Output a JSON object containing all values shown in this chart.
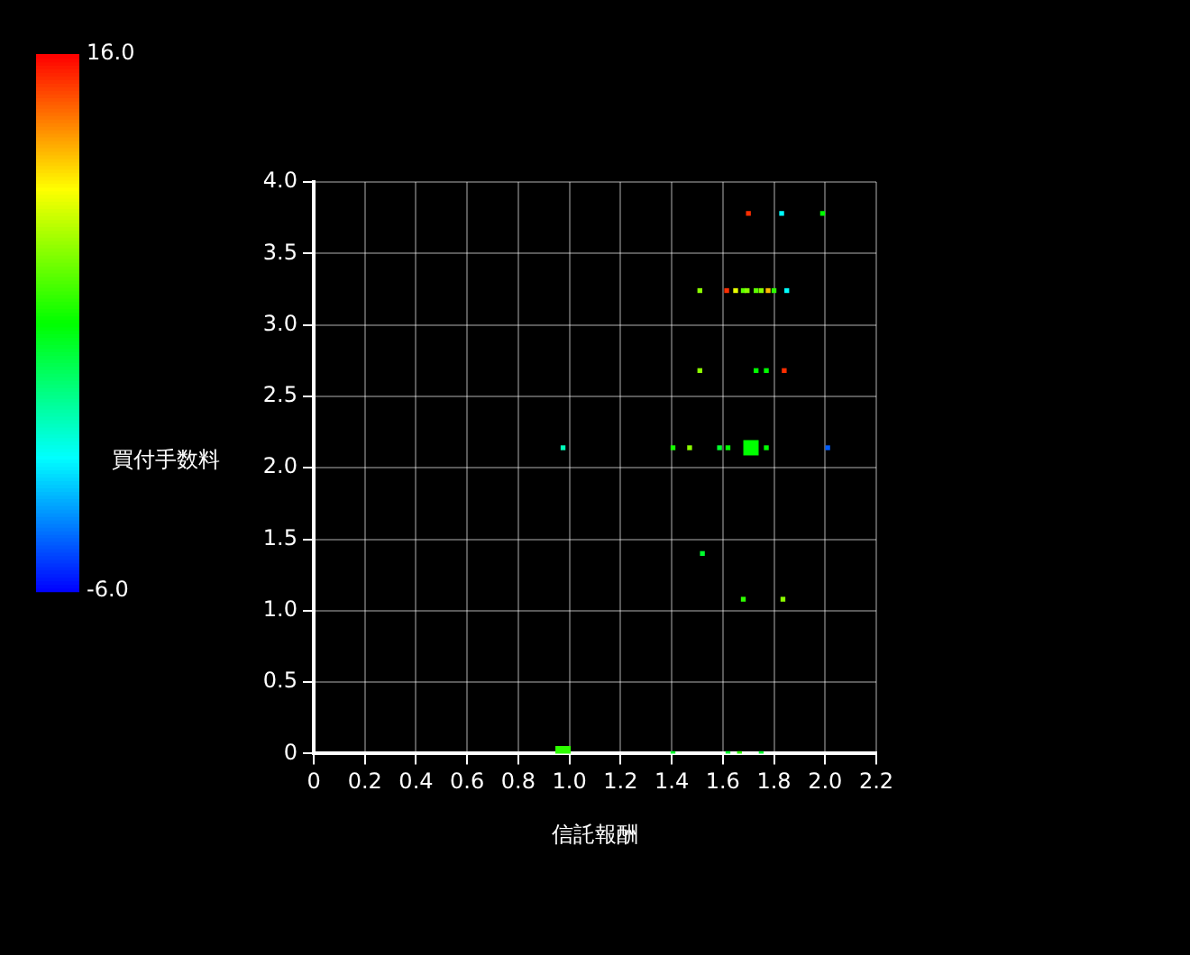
{
  "chart_data": {
    "type": "bubble",
    "xlabel": "信託報酬",
    "clabel": "買付手数料",
    "x": [
      1.7,
      1.83,
      1.99,
      1.51,
      1.615,
      1.65,
      1.68,
      1.695,
      1.73,
      1.75,
      1.777,
      1.8,
      1.85,
      1.51,
      1.73,
      1.77,
      1.84,
      0.975,
      1.405,
      1.47,
      1.587,
      1.62,
      1.71,
      1.77,
      2.01,
      1.52,
      1.68,
      1.835,
      0.975,
      1.405,
      1.62,
      1.665,
      1.75
    ],
    "values": [
      3.78,
      3.78,
      3.78,
      3.24,
      3.24,
      3.24,
      3.24,
      3.24,
      3.24,
      3.24,
      3.24,
      3.24,
      3.24,
      2.68,
      2.68,
      2.68,
      2.68,
      2.14,
      2.14,
      2.14,
      2.14,
      2.14,
      2.14,
      2.14,
      2.14,
      1.4,
      1.08,
      1.08,
      0,
      0,
      0,
      0,
      0
    ],
    "cvalues": [
      15,
      -0.5,
      5,
      8,
      15,
      10,
      7,
      8,
      7,
      8,
      12,
      6,
      -0.5,
      8,
      5,
      5,
      15,
      1,
      5.5,
      8,
      4,
      5,
      5,
      5,
      -4,
      4,
      6,
      8,
      6,
      4,
      4,
      6,
      4
    ],
    "sizes": [
      0.1,
      0.1,
      0.1,
      0.1,
      0.1,
      0.1,
      0.1,
      0.1,
      0.1,
      0.1,
      0.1,
      0.1,
      0.1,
      0.1,
      0.1,
      0.1,
      0.1,
      0.1,
      0.1,
      0.1,
      0.1,
      0.1,
      1,
      0.1,
      0.1,
      0.1,
      0.1,
      0.1,
      1,
      0.1,
      0.1,
      0.1,
      0.1
    ],
    "xlim": [
      0,
      2.2
    ],
    "ylim": [
      0,
      4.0
    ],
    "xticks": [
      0,
      0.2,
      0.4,
      0.6,
      0.8,
      {
        "value": 1.0,
        "label": "1.0"
      },
      1.2,
      1.4,
      1.6,
      1.8,
      {
        "value": 2.0,
        "label": "2.0"
      },
      2.2
    ],
    "yticks": [
      0,
      0.5,
      {
        "value": 1.0,
        "label": "1.0"
      },
      1.5,
      {
        "value": 2.0,
        "label": "2.0"
      },
      2.5,
      {
        "value": 3.0,
        "label": "3.0"
      },
      3.5,
      {
        "value": 4.0,
        "label": "4.0"
      }
    ],
    "clim": [
      -6,
      16
    ],
    "cticks": [
      {
        "value": -6,
        "label": "-6.0"
      },
      {
        "value": 16,
        "label": "16.0"
      }
    ],
    "grid": true,
    "marker": "square"
  }
}
